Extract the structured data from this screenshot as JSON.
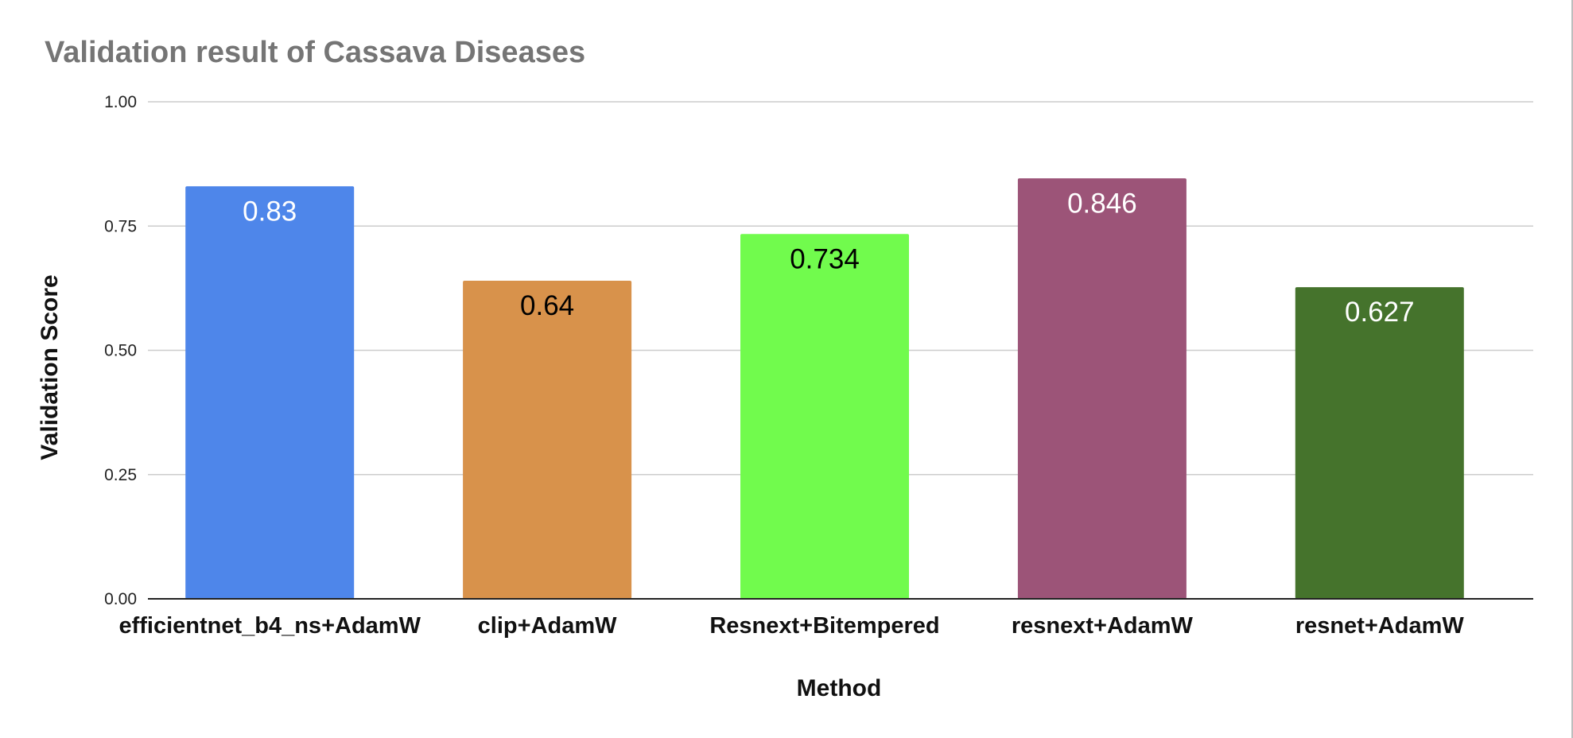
{
  "chart_data": {
    "type": "bar",
    "title": "Validation result of Cassava Diseases",
    "xlabel": "Method",
    "ylabel": "Validation Score",
    "ylim": [
      0,
      1
    ],
    "yticks": [
      "0.00",
      "0.25",
      "0.50",
      "0.75",
      "1.00"
    ],
    "ytick_values": [
      0,
      0.25,
      0.5,
      0.75,
      1
    ],
    "categories": [
      "efficientnet_b4_ns+AdamW",
      "clip+AdamW",
      "Resnext+Bitempered",
      "resnext+AdamW",
      "resnet+AdamW"
    ],
    "values": [
      0.83,
      0.64,
      0.734,
      0.846,
      0.627
    ],
    "data_labels": [
      "0.83",
      "0.64",
      "0.734",
      "0.846",
      "0.627"
    ],
    "colors": [
      "#4e86ea",
      "#d8924b",
      "#71fb4d",
      "#9c5478",
      "#45732c"
    ],
    "label_colors": [
      "#ffffff",
      "#000000",
      "#000000",
      "#ffffff",
      "#ffffff"
    ],
    "grid": true,
    "legend": "none"
  }
}
